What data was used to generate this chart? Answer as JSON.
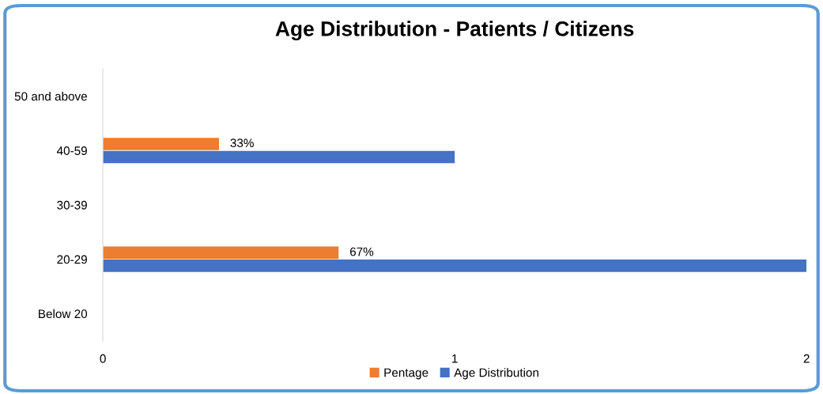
{
  "chart_data": {
    "type": "bar",
    "orientation": "horizontal",
    "title": "Age Distribution - Patients / Citizens",
    "categories": [
      "50 and above",
      "40-59",
      "30-39",
      "20-29",
      "Below 20"
    ],
    "series": [
      {
        "name": "Pentage",
        "color": "#ed7d31",
        "values": [
          null,
          0.33,
          null,
          0.67,
          null
        ],
        "value_labels": [
          null,
          "33%",
          null,
          "67%",
          null
        ]
      },
      {
        "name": "Age Distribution",
        "color": "#4472c4",
        "values": [
          null,
          1,
          null,
          2,
          null
        ]
      }
    ],
    "xlim": [
      0,
      2
    ],
    "xticks": [
      0,
      1,
      2
    ],
    "grid": false,
    "legend": "bottom"
  }
}
